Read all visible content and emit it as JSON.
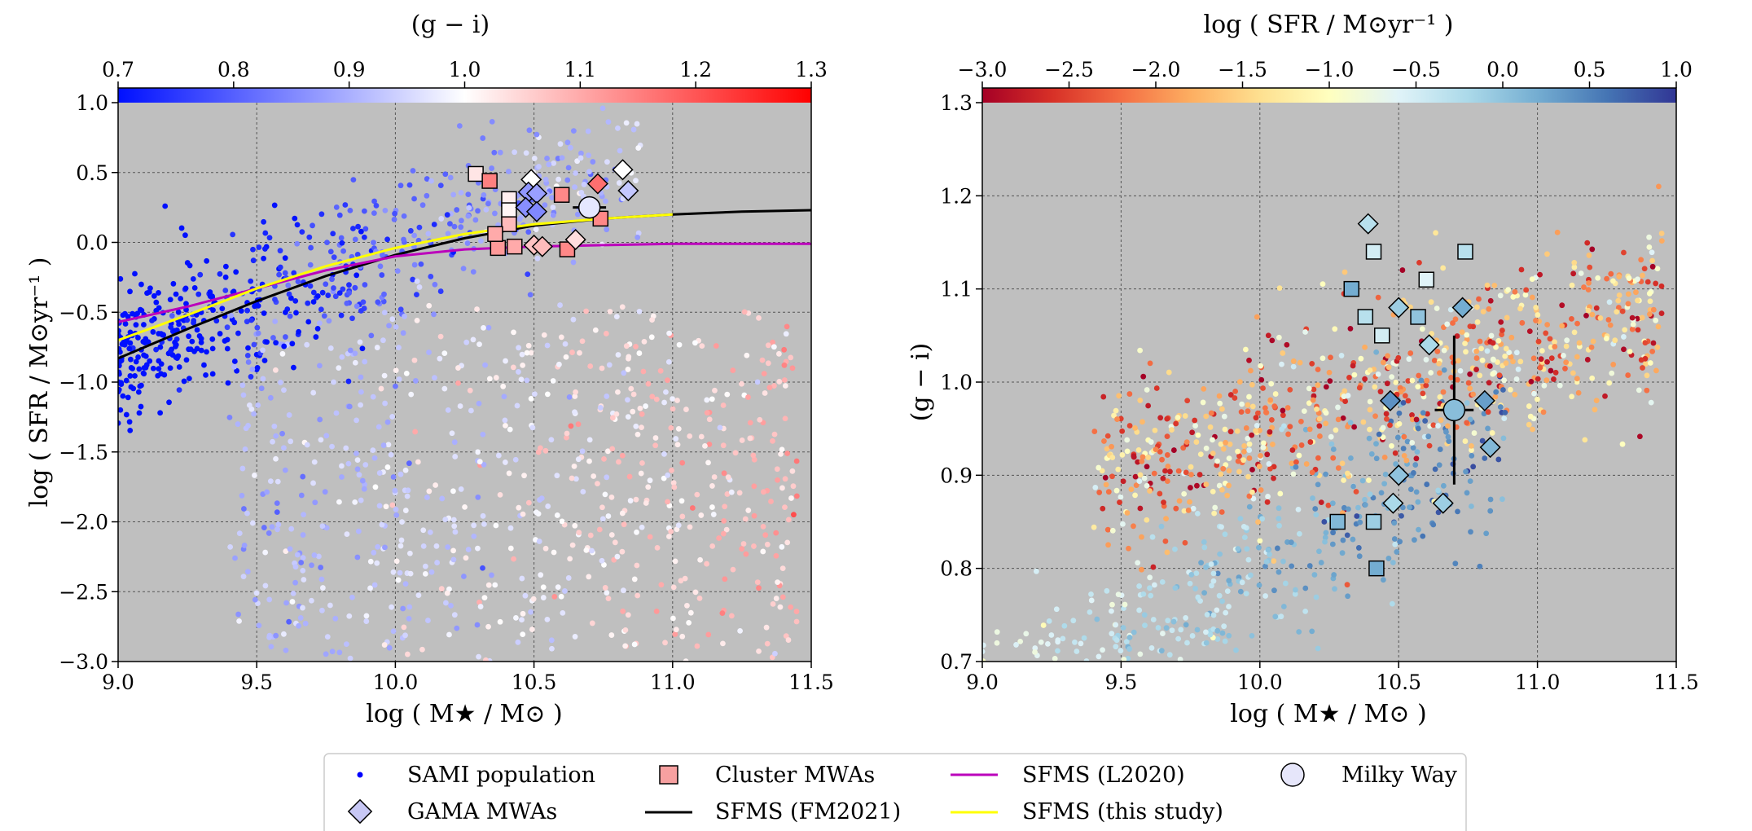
{
  "chart_data": [
    {
      "type": "scatter",
      "xlabel": "log ( M★ / M⊙ )",
      "ylabel": "log ( SFR / M⊙yr⁻¹ )",
      "colorbar_label": "(g − i)",
      "xlim": [
        9.0,
        11.5
      ],
      "ylim": [
        -3.0,
        1.0
      ],
      "x_ticks": [
        "9.0",
        "9.5",
        "10.0",
        "10.5",
        "11.0",
        "11.5"
      ],
      "y_ticks": [
        "−3.0",
        "−2.5",
        "−2.0",
        "−1.5",
        "−1.0",
        "−0.5",
        "0.0",
        "0.5",
        "1.0"
      ],
      "colorbar_range": [
        0.7,
        1.3
      ],
      "colorbar_ticks": [
        "0.7",
        "0.8",
        "0.9",
        "1.0",
        "1.1",
        "1.2",
        "1.3"
      ],
      "colormap": [
        "#0010ff",
        "#ffffff",
        "#ff0000"
      ],
      "grid": true,
      "background": "#bfbfbf",
      "series": [
        {
          "name": "SFMS (FM2021)",
          "kind": "line",
          "color": "#000000",
          "x": [
            9.0,
            9.25,
            9.5,
            9.75,
            10.0,
            10.25,
            10.5,
            10.75,
            11.0,
            11.25,
            11.5
          ],
          "y": [
            -0.83,
            -0.62,
            -0.42,
            -0.24,
            -0.09,
            0.03,
            0.12,
            0.17,
            0.2,
            0.22,
            0.23
          ]
        },
        {
          "name": "SFMS (L2020)",
          "kind": "line",
          "color": "#bb00bb",
          "x": [
            9.0,
            9.25,
            9.5,
            9.75,
            10.0,
            10.25,
            10.5,
            10.75,
            11.0,
            11.25,
            11.5
          ],
          "y": [
            -0.57,
            -0.46,
            -0.33,
            -0.2,
            -0.1,
            -0.05,
            -0.03,
            -0.02,
            -0.01,
            -0.01,
            -0.01
          ]
        },
        {
          "name": "SFMS (this study)",
          "kind": "line",
          "color": "#ffff00",
          "x": [
            9.0,
            9.25,
            9.5,
            9.75,
            10.0,
            10.25,
            10.5,
            10.75,
            11.0
          ],
          "y": [
            -0.7,
            -0.52,
            -0.33,
            -0.17,
            -0.04,
            0.06,
            0.13,
            0.17,
            0.2
          ]
        },
        {
          "name": "Cluster MWAs",
          "kind": "square",
          "points": [
            [
              10.29,
              0.49,
              1.03
            ],
            [
              10.34,
              0.44,
              1.15
            ],
            [
              10.41,
              0.31,
              1.02
            ],
            [
              10.41,
              0.23,
              1.01
            ],
            [
              10.41,
              0.13,
              1.08
            ],
            [
              10.37,
              -0.04,
              1.12
            ],
            [
              10.43,
              -0.03,
              1.1
            ],
            [
              10.6,
              0.34,
              1.14
            ],
            [
              10.62,
              -0.05,
              1.14
            ],
            [
              10.74,
              0.17,
              1.14
            ],
            [
              10.36,
              0.06,
              1.1
            ]
          ]
        },
        {
          "name": "GAMA MWAs",
          "kind": "diamond",
          "points": [
            [
              10.49,
              0.45,
              1.0
            ],
            [
              10.48,
              0.36,
              0.87
            ],
            [
              10.51,
              0.35,
              0.88
            ],
            [
              10.47,
              0.25,
              0.86
            ],
            [
              10.51,
              0.22,
              0.85
            ],
            [
              10.73,
              0.42,
              1.17
            ],
            [
              10.82,
              0.52,
              1.0
            ],
            [
              10.84,
              0.37,
              0.93
            ],
            [
              10.5,
              -0.02,
              1.07
            ],
            [
              10.53,
              -0.03,
              1.08
            ],
            [
              10.65,
              0.02,
              1.04
            ]
          ]
        },
        {
          "name": "Milky Way",
          "kind": "circle",
          "points": [
            [
              10.7,
              0.25,
              0.97
            ]
          ],
          "xerr": 0.06,
          "yerr": 0.06
        }
      ]
    },
    {
      "type": "scatter",
      "xlabel": "log ( M★ / M⊙ )",
      "ylabel": "(g − i)",
      "colorbar_label": "log ( SFR / M⊙yr⁻¹ )",
      "xlim": [
        9.0,
        11.5
      ],
      "ylim": [
        0.7,
        1.3
      ],
      "x_ticks": [
        "9.0",
        "9.5",
        "10.0",
        "10.5",
        "11.0",
        "11.5"
      ],
      "y_ticks": [
        "0.7",
        "0.8",
        "0.9",
        "1.0",
        "1.1",
        "1.2",
        "1.3"
      ],
      "colorbar_range": [
        -3.0,
        1.0
      ],
      "colorbar_ticks": [
        "−3.0",
        "−2.5",
        "−2.0",
        "−1.5",
        "−1.0",
        "−0.5",
        "0.0",
        "0.5",
        "1.0"
      ],
      "colormap": [
        "#a50026",
        "#d73027",
        "#f46d43",
        "#fdae61",
        "#fee090",
        "#ffffbf",
        "#e0f3f8",
        "#abd9e9",
        "#74add1",
        "#4575b4",
        "#313695"
      ],
      "grid": true,
      "background": "#bfbfbf",
      "series": [
        {
          "name": "Cluster MWAs",
          "kind": "square",
          "points": [
            [
              10.41,
              1.14,
              -0.5
            ],
            [
              10.74,
              1.14,
              -0.3
            ],
            [
              10.33,
              1.1,
              0.2
            ],
            [
              10.38,
              1.07,
              -0.3
            ],
            [
              10.44,
              1.05,
              -0.5
            ],
            [
              10.57,
              1.07,
              0.0
            ],
            [
              10.6,
              1.11,
              -0.6
            ],
            [
              10.28,
              0.85,
              0.1
            ],
            [
              10.41,
              0.85,
              -0.1
            ],
            [
              10.42,
              0.8,
              0.2
            ]
          ]
        },
        {
          "name": "GAMA MWAs",
          "kind": "diamond",
          "points": [
            [
              10.39,
              1.17,
              -0.3
            ],
            [
              10.5,
              1.08,
              -0.1
            ],
            [
              10.61,
              1.04,
              -0.2
            ],
            [
              10.73,
              1.08,
              0.2
            ],
            [
              10.47,
              0.98,
              0.4
            ],
            [
              10.81,
              0.98,
              0.3
            ],
            [
              10.5,
              0.9,
              0.0
            ],
            [
              10.48,
              0.87,
              -0.2
            ],
            [
              10.66,
              0.87,
              -0.1
            ],
            [
              10.83,
              0.93,
              0.1
            ]
          ]
        },
        {
          "name": "Milky Way",
          "kind": "circle",
          "points": [
            [
              10.7,
              0.97,
              0.05
            ]
          ],
          "xerr": 0.07,
          "yerr": 0.08
        }
      ]
    }
  ],
  "legend": {
    "items": [
      {
        "label": "SAMI population",
        "marker": "dot",
        "color": "#0000ff"
      },
      {
        "label": "GAMA MWAs",
        "marker": "diamond",
        "color": "#c8c8f5"
      },
      {
        "label": "Cluster MWAs",
        "marker": "square",
        "color": "#f7a0a0"
      },
      {
        "label": "SFMS (FM2021)",
        "marker": "line",
        "color": "#000000"
      },
      {
        "label": "SFMS (L2020)",
        "marker": "line",
        "color": "#bb00bb"
      },
      {
        "label": "SFMS (this study)",
        "marker": "line",
        "color": "#ffff00"
      },
      {
        "label": "Milky Way",
        "marker": "circle",
        "color": "#e6e6fa"
      }
    ]
  }
}
